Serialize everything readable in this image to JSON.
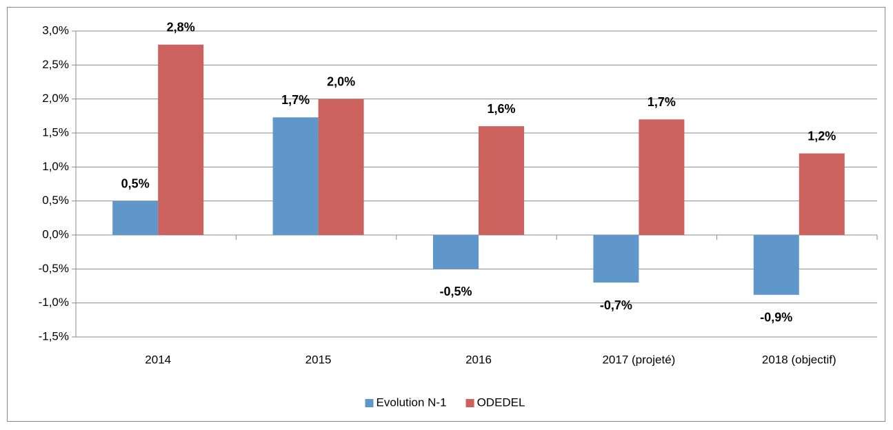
{
  "chart_data": {
    "type": "bar",
    "categories": [
      "2014",
      "2015",
      "2016",
      "2017 (projeté)",
      "2018 (objectif)"
    ],
    "series": [
      {
        "name": "Evolution N-1",
        "color": "#6097cb",
        "values": [
          0.5,
          1.73,
          -0.5,
          -0.7,
          -0.88
        ],
        "value_labels": [
          "0,5%",
          "1,7%",
          "-0,5%",
          "-0,7%",
          "-0,9%"
        ]
      },
      {
        "name": "ODEDEL",
        "color": "#cb625d",
        "values": [
          2.8,
          2.0,
          1.6,
          1.7,
          1.2
        ],
        "value_labels": [
          "2,8%",
          "2,0%",
          "1,6%",
          "1,7%",
          "1,2%"
        ]
      }
    ],
    "ylim": [
      -1.5,
      3.0
    ],
    "yticks": [
      {
        "value": -1.5,
        "label": "-1,5%"
      },
      {
        "value": -1.0,
        "label": "-1,0%"
      },
      {
        "value": -0.5,
        "label": "-0,5%"
      },
      {
        "value": 0.0,
        "label": "0,0%"
      },
      {
        "value": 0.5,
        "label": "0,5%"
      },
      {
        "value": 1.0,
        "label": "1,0%"
      },
      {
        "value": 1.5,
        "label": "1,5%"
      },
      {
        "value": 2.0,
        "label": "2,0%"
      },
      {
        "value": 2.5,
        "label": "2,5%"
      },
      {
        "value": 3.0,
        "label": "3,0%"
      }
    ],
    "grid": true,
    "legend": "bottom"
  }
}
